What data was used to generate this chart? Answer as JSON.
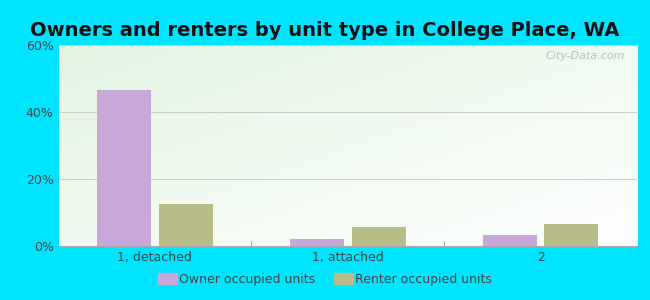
{
  "title": "Owners and renters by unit type in College Place, WA",
  "categories": [
    "1, detached",
    "1, attached",
    "2"
  ],
  "owner_values": [
    46.5,
    2.2,
    3.2
  ],
  "renter_values": [
    12.5,
    5.8,
    6.5
  ],
  "owner_color": "#c8a8d8",
  "renter_color": "#b8bc88",
  "ylim": [
    0,
    60
  ],
  "yticks": [
    0,
    20,
    40,
    60
  ],
  "ytick_labels": [
    "0%",
    "20%",
    "40%",
    "60%"
  ],
  "bar_width": 0.28,
  "outer_background": "#00e5ff",
  "legend_owner": "Owner occupied units",
  "legend_renter": "Renter occupied units",
  "title_fontsize": 14,
  "axis_fontsize": 9,
  "legend_fontsize": 9,
  "text_color": "#444444",
  "watermark": "City-Data.com"
}
